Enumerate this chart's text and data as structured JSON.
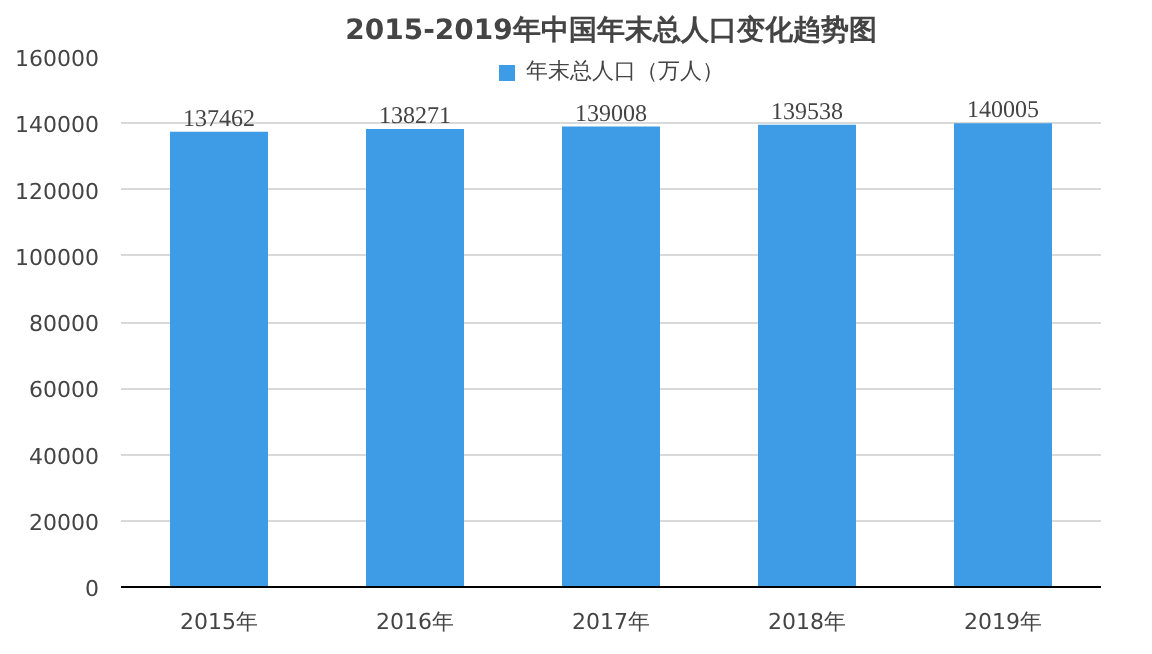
{
  "chart_data": {
    "type": "bar",
    "title": "2015-2019年中国年末总人口变化趋势图",
    "categories": [
      "2015年",
      "2016年",
      "2017年",
      "2018年",
      "2019年"
    ],
    "series": [
      {
        "name": "年末总人口（万人）",
        "color": "#3e9be6",
        "values": [
          137462,
          138271,
          139008,
          139538,
          140005
        ]
      }
    ],
    "ylim": [
      0,
      160000
    ],
    "yticks": [
      0,
      20000,
      40000,
      60000,
      80000,
      100000,
      120000,
      140000,
      160000
    ],
    "grid": "y",
    "legend": "top",
    "data_labels": true
  }
}
